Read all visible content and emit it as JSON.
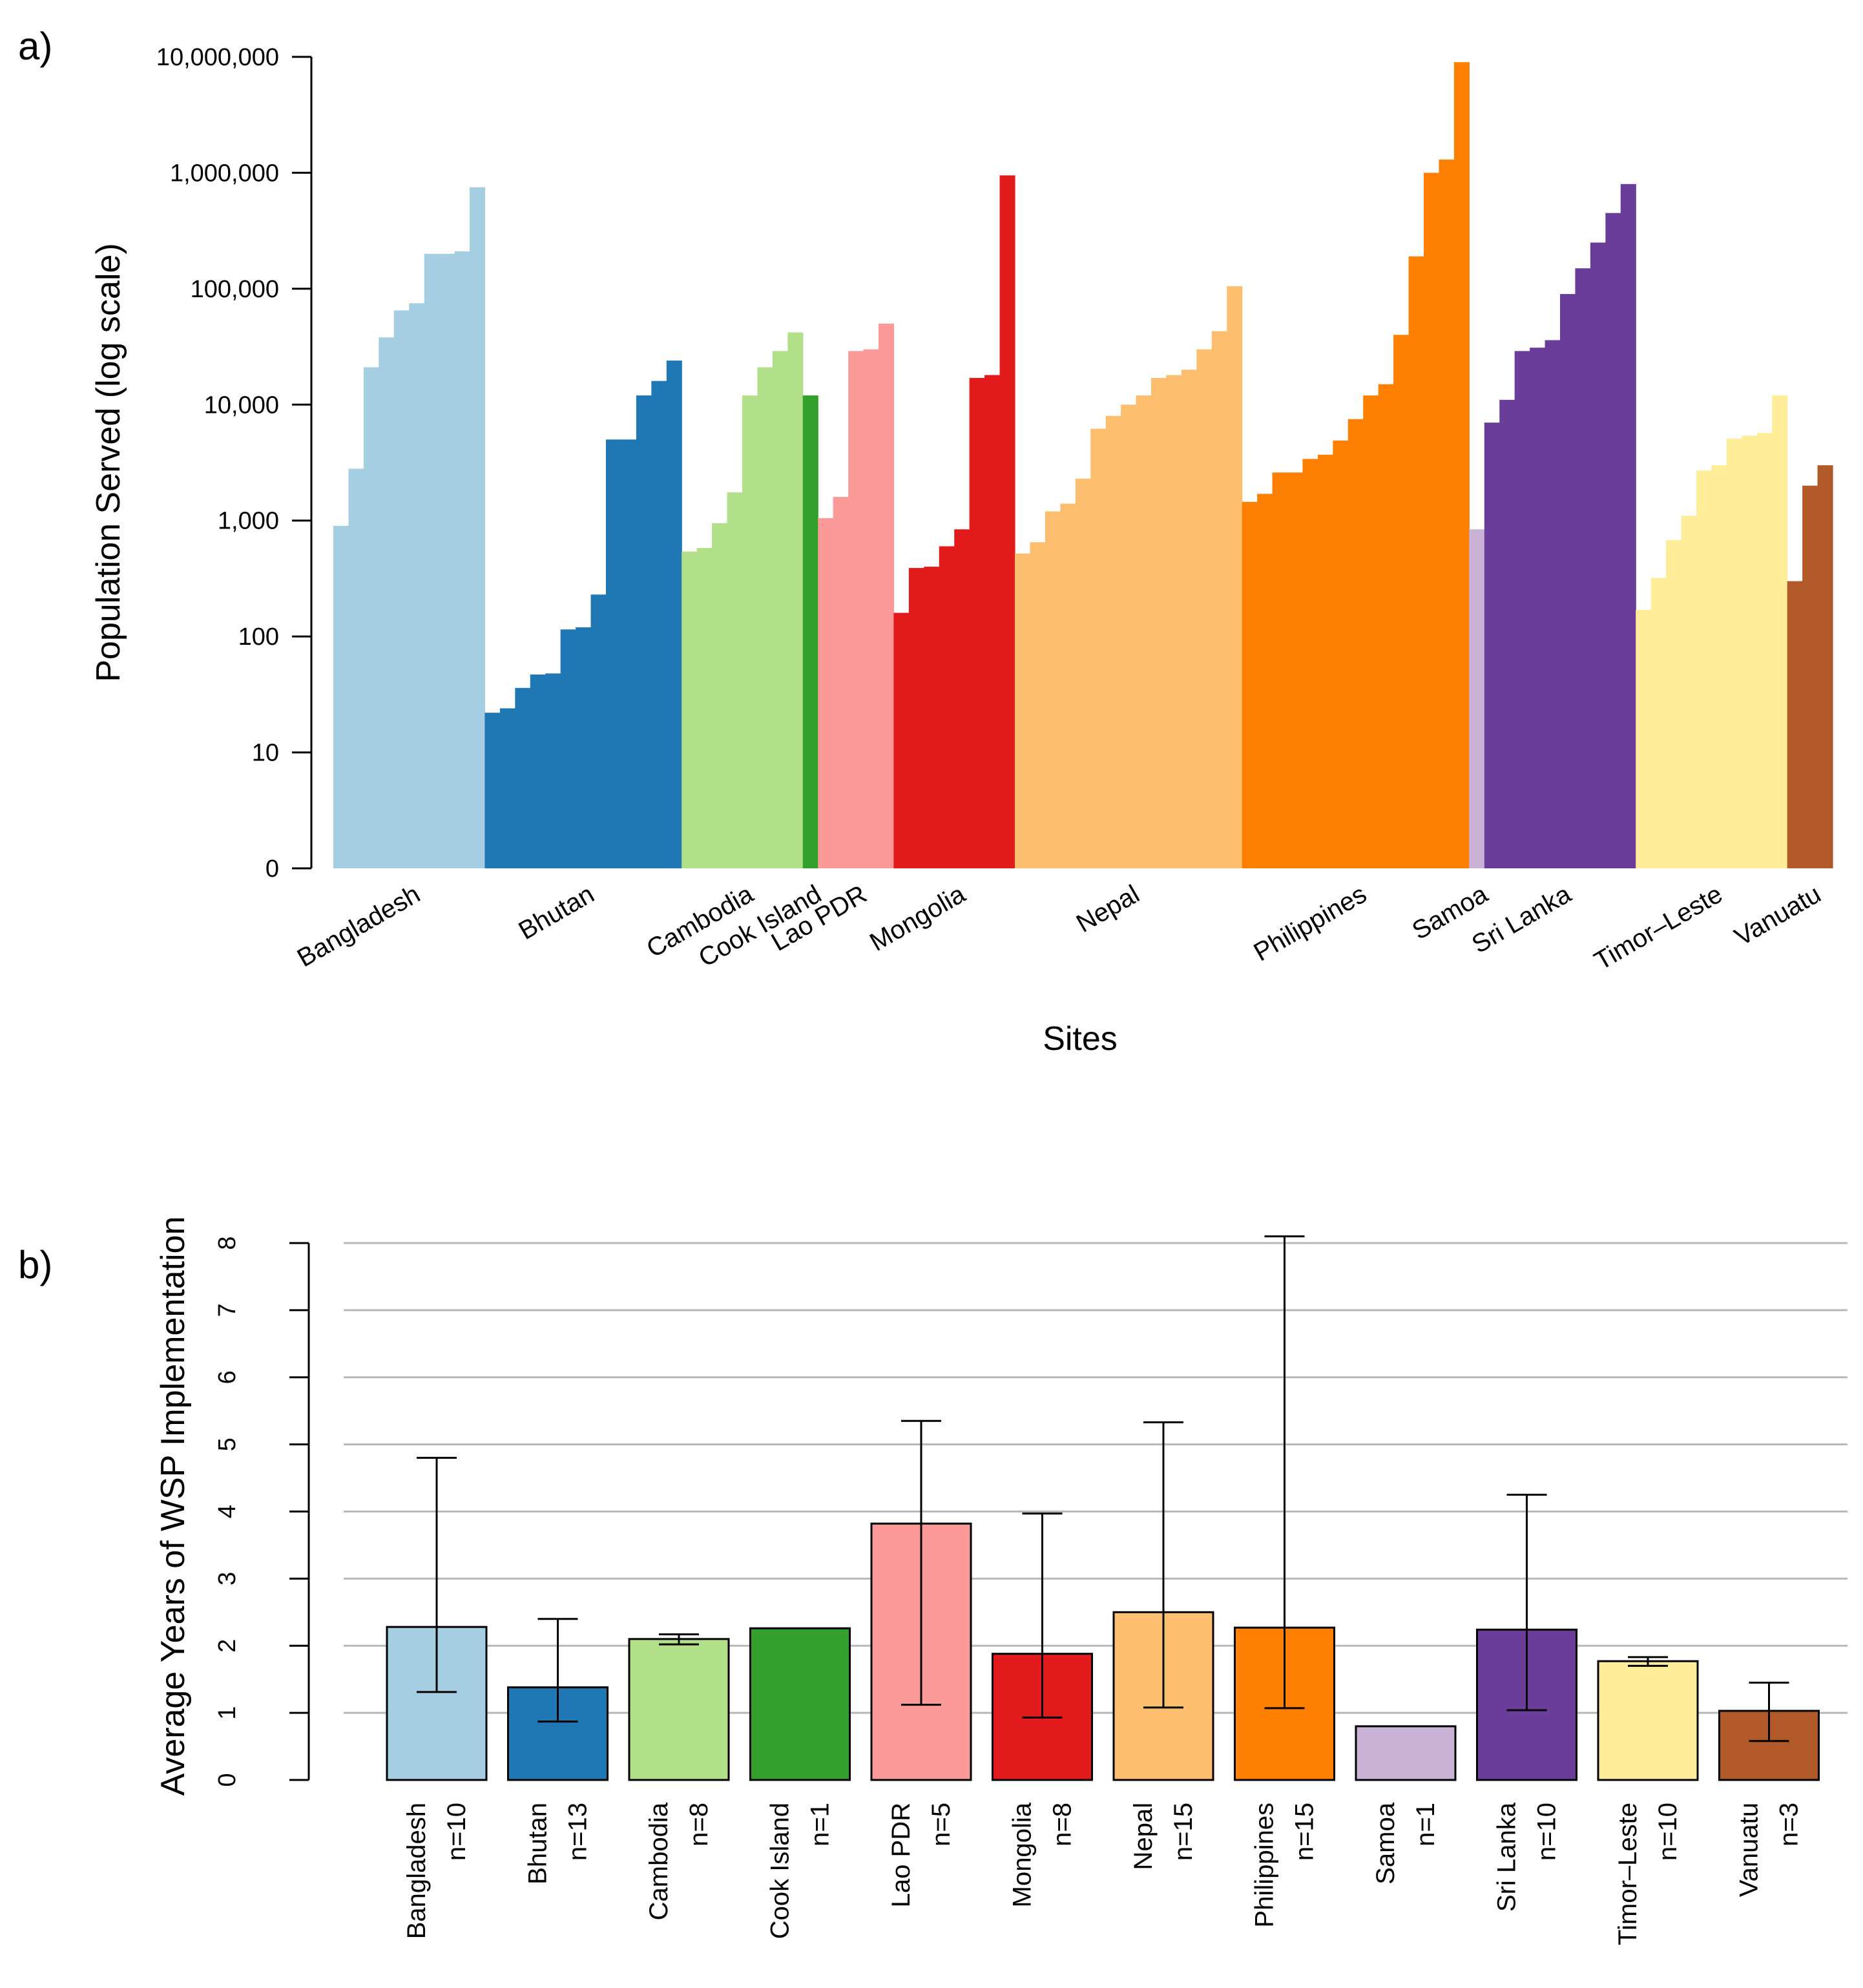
{
  "chart_data": [
    {
      "id": "a",
      "panel_label": "a)",
      "type": "bar",
      "title": "",
      "ylabel": "Population Served (log scale)",
      "xlabel": "Sites",
      "yscale": "log",
      "ylim": [
        1,
        10000000
      ],
      "yticks": [
        {
          "value": 1,
          "label": "0"
        },
        {
          "value": 10,
          "label": "10"
        },
        {
          "value": 100,
          "label": "100"
        },
        {
          "value": 1000,
          "label": "1,000"
        },
        {
          "value": 10000,
          "label": "10,000"
        },
        {
          "value": 100000,
          "label": "100,000"
        },
        {
          "value": 1000000,
          "label": "1,000,000"
        },
        {
          "value": 10000000,
          "label": "10,000,000"
        }
      ],
      "groups": [
        {
          "name": "Bangladesh",
          "label": "Bangladesh",
          "color": "#A6CEE3",
          "values": [
            900,
            2800,
            21000,
            38000,
            65000,
            75000,
            200000,
            200000,
            210000,
            750000
          ]
        },
        {
          "name": "Bhutan",
          "label": "Bhutan",
          "color": "#1F78B4",
          "values": [
            22,
            24,
            36,
            47,
            48,
            115,
            120,
            230,
            5000,
            5000,
            12000,
            16000,
            24000
          ]
        },
        {
          "name": "Cambodia",
          "label": "Cambodia",
          "color": "#B2DF8A",
          "values": [
            540,
            580,
            950,
            1750,
            12000,
            21000,
            29000,
            42000
          ]
        },
        {
          "name": "Cook Island",
          "label": "Cook Island",
          "color": "#33A02C",
          "values": [
            12000
          ]
        },
        {
          "name": "Lao PDR",
          "label": "Lao PDR",
          "color": "#FB9A99",
          "values": [
            1050,
            1600,
            29000,
            30000,
            50000
          ]
        },
        {
          "name": "Mongolia",
          "label": "Mongolia",
          "color": "#E31A1C",
          "values": [
            160,
            390,
            400,
            600,
            840,
            17000,
            18000,
            950000
          ]
        },
        {
          "name": "Nepal",
          "label": "Nepal",
          "color": "#FDBF6F",
          "values": [
            520,
            650,
            1200,
            1400,
            2300,
            6200,
            8000,
            10000,
            12000,
            17000,
            18000,
            20000,
            30000,
            43000,
            105000
          ]
        },
        {
          "name": "Philippines",
          "label": "Philippines",
          "color": "#FF7F00",
          "values": [
            1450,
            1700,
            2600,
            2600,
            3400,
            3700,
            4900,
            7500,
            12000,
            15000,
            40000,
            190000,
            1000000,
            1300000,
            9000000
          ]
        },
        {
          "name": "Samoa",
          "label": "Samoa",
          "color": "#CAB2D6",
          "values": [
            840
          ]
        },
        {
          "name": "Sri Lanka",
          "label": "Sri Lanka",
          "color": "#6A3D9A",
          "values": [
            7000,
            11000,
            29000,
            31000,
            36000,
            90000,
            150000,
            250000,
            450000,
            800000
          ]
        },
        {
          "name": "Timor-Leste",
          "label": "Timor–Leste",
          "color": "#FFED99",
          "values": [
            170,
            320,
            680,
            1100,
            2700,
            3000,
            5100,
            5400,
            5700,
            12000
          ]
        },
        {
          "name": "Vanuatu",
          "label": "Vanuatu",
          "color": "#B15928",
          "values": [
            300,
            2000,
            3000
          ]
        }
      ]
    },
    {
      "id": "b",
      "panel_label": "b)",
      "type": "bar",
      "title": "",
      "ylabel": "Average Years of WSP Implementation",
      "xlabel": "",
      "ylim": [
        0,
        8
      ],
      "yticks": [
        0,
        1,
        2,
        3,
        4,
        5,
        6,
        7,
        8
      ],
      "grid": true,
      "error_bars": true,
      "categories": [
        "Bangladesh",
        "Bhutan",
        "Cambodia",
        "Cook Island",
        "Lao PDR",
        "Mongolia",
        "Nepal",
        "Philippines",
        "Samoa",
        "Sri Lanka",
        "Timor–Leste",
        "Vanuatu"
      ],
      "counts": [
        "n=10",
        "n=13",
        "n=8",
        "n=1",
        "n=5",
        "n=8",
        "n=15",
        "n=15",
        "n=1",
        "n=10",
        "n=10",
        "n=3"
      ],
      "values": [
        2.28,
        1.38,
        2.1,
        2.26,
        3.82,
        1.88,
        2.5,
        2.27,
        0.8,
        2.24,
        1.77,
        1.03
      ],
      "err_low": [
        1.31,
        0.87,
        2.02,
        null,
        1.12,
        0.93,
        1.08,
        1.07,
        null,
        1.04,
        1.7,
        0.58
      ],
      "err_high": [
        4.8,
        2.4,
        2.17,
        null,
        5.35,
        3.97,
        5.33,
        8.1,
        null,
        4.25,
        1.83,
        1.45
      ],
      "colors": [
        "#A6CEE3",
        "#1F78B4",
        "#B2DF8A",
        "#33A02C",
        "#FB9A99",
        "#E31A1C",
        "#FDBF6F",
        "#FF7F00",
        "#CAB2D6",
        "#6A3D9A",
        "#FFED99",
        "#B15928"
      ]
    }
  ]
}
